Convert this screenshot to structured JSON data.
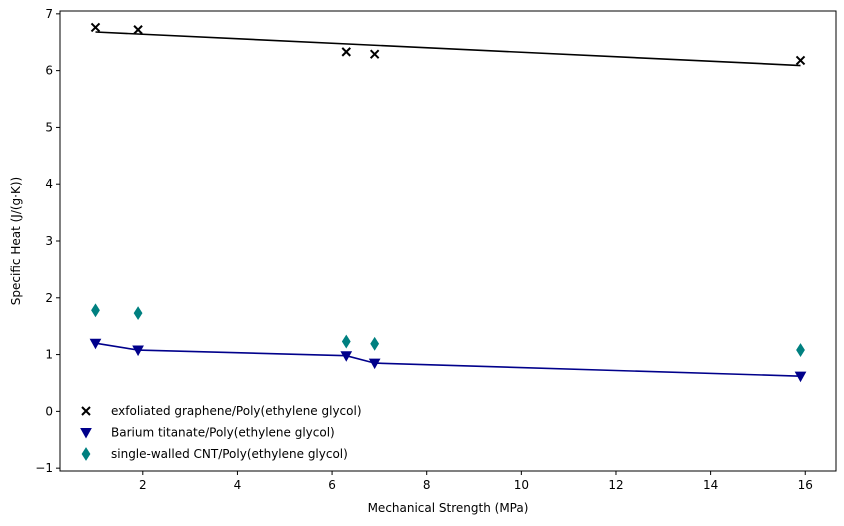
{
  "chart_data": {
    "type": "scatter",
    "title": "",
    "xlabel": "Mechanical Strength (MPa)",
    "ylabel": "Specific Heat (J/(g·K))",
    "xlim": [
      0.25,
      16.65
    ],
    "ylim": [
      -1.05,
      7.05
    ],
    "xticks": [
      2,
      4,
      6,
      8,
      10,
      12,
      14,
      16
    ],
    "yticks": [
      -1,
      0,
      1,
      2,
      3,
      4,
      5,
      6,
      7
    ],
    "grid": false,
    "legend_position": "lower-left",
    "series": [
      {
        "name": "exfoliated graphene/Poly(ethylene glycol)",
        "marker": "x",
        "color": "#000000",
        "x": [
          1.0,
          1.9,
          6.3,
          6.9,
          15.9
        ],
        "y": [
          6.76,
          6.72,
          6.33,
          6.29,
          6.18
        ],
        "fit_line": {
          "x": [
            1.0,
            15.9
          ],
          "y": [
            6.68,
            6.09
          ]
        }
      },
      {
        "name": "Barium titanate/Poly(ethylene glycol)",
        "marker": "triangle-down",
        "color": "#00008b",
        "connected": true,
        "x": [
          1.0,
          1.9,
          6.3,
          6.9,
          15.9
        ],
        "y": [
          1.2,
          1.08,
          0.98,
          0.85,
          0.62
        ]
      },
      {
        "name": "single-walled CNT/Poly(ethylene glycol)",
        "marker": "thin-diamond",
        "color": "#008080",
        "x": [
          1.0,
          1.9,
          6.3,
          6.9,
          15.9
        ],
        "y": [
          1.78,
          1.73,
          1.23,
          1.19,
          1.08
        ]
      }
    ]
  }
}
